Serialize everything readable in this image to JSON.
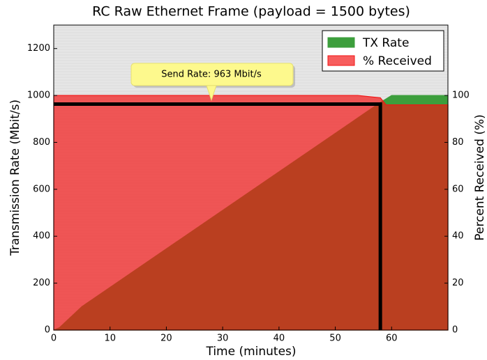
{
  "chart_data": {
    "type": "area",
    "title": "RC Raw Ethernet Frame (payload = 1500 bytes)",
    "xlabel": "Time (minutes)",
    "ylabel": "Transmission Rate (Mbit/s)",
    "y2label": "Percent Received (%)",
    "xlim": [
      0,
      70
    ],
    "xticks": [
      0,
      10,
      20,
      30,
      40,
      50,
      60
    ],
    "ylim": [
      0,
      1300
    ],
    "yticks": [
      0,
      200,
      400,
      600,
      800,
      1000,
      1200
    ],
    "y2lim": [
      0,
      130
    ],
    "y2ticks": [
      0,
      20,
      40,
      60,
      80,
      100
    ],
    "legend": "upper right",
    "series": [
      {
        "name": "TX Rate",
        "color": "#3c9e3c",
        "axis": "y",
        "x": [
          0,
          1,
          5,
          58,
          60,
          70
        ],
        "values": [
          0,
          10,
          100,
          970,
          1000,
          1000
        ]
      },
      {
        "name": "% Received",
        "color": "#f31414",
        "axis": "y2",
        "x": [
          0,
          54,
          58,
          59,
          70
        ],
        "values": [
          100,
          100,
          99,
          96,
          96
        ]
      }
    ],
    "reference": {
      "x": 58,
      "y": 963
    },
    "annotation": {
      "text": "Send Rate: 963 Mbit/s",
      "xy": [
        28,
        980
      ]
    }
  }
}
